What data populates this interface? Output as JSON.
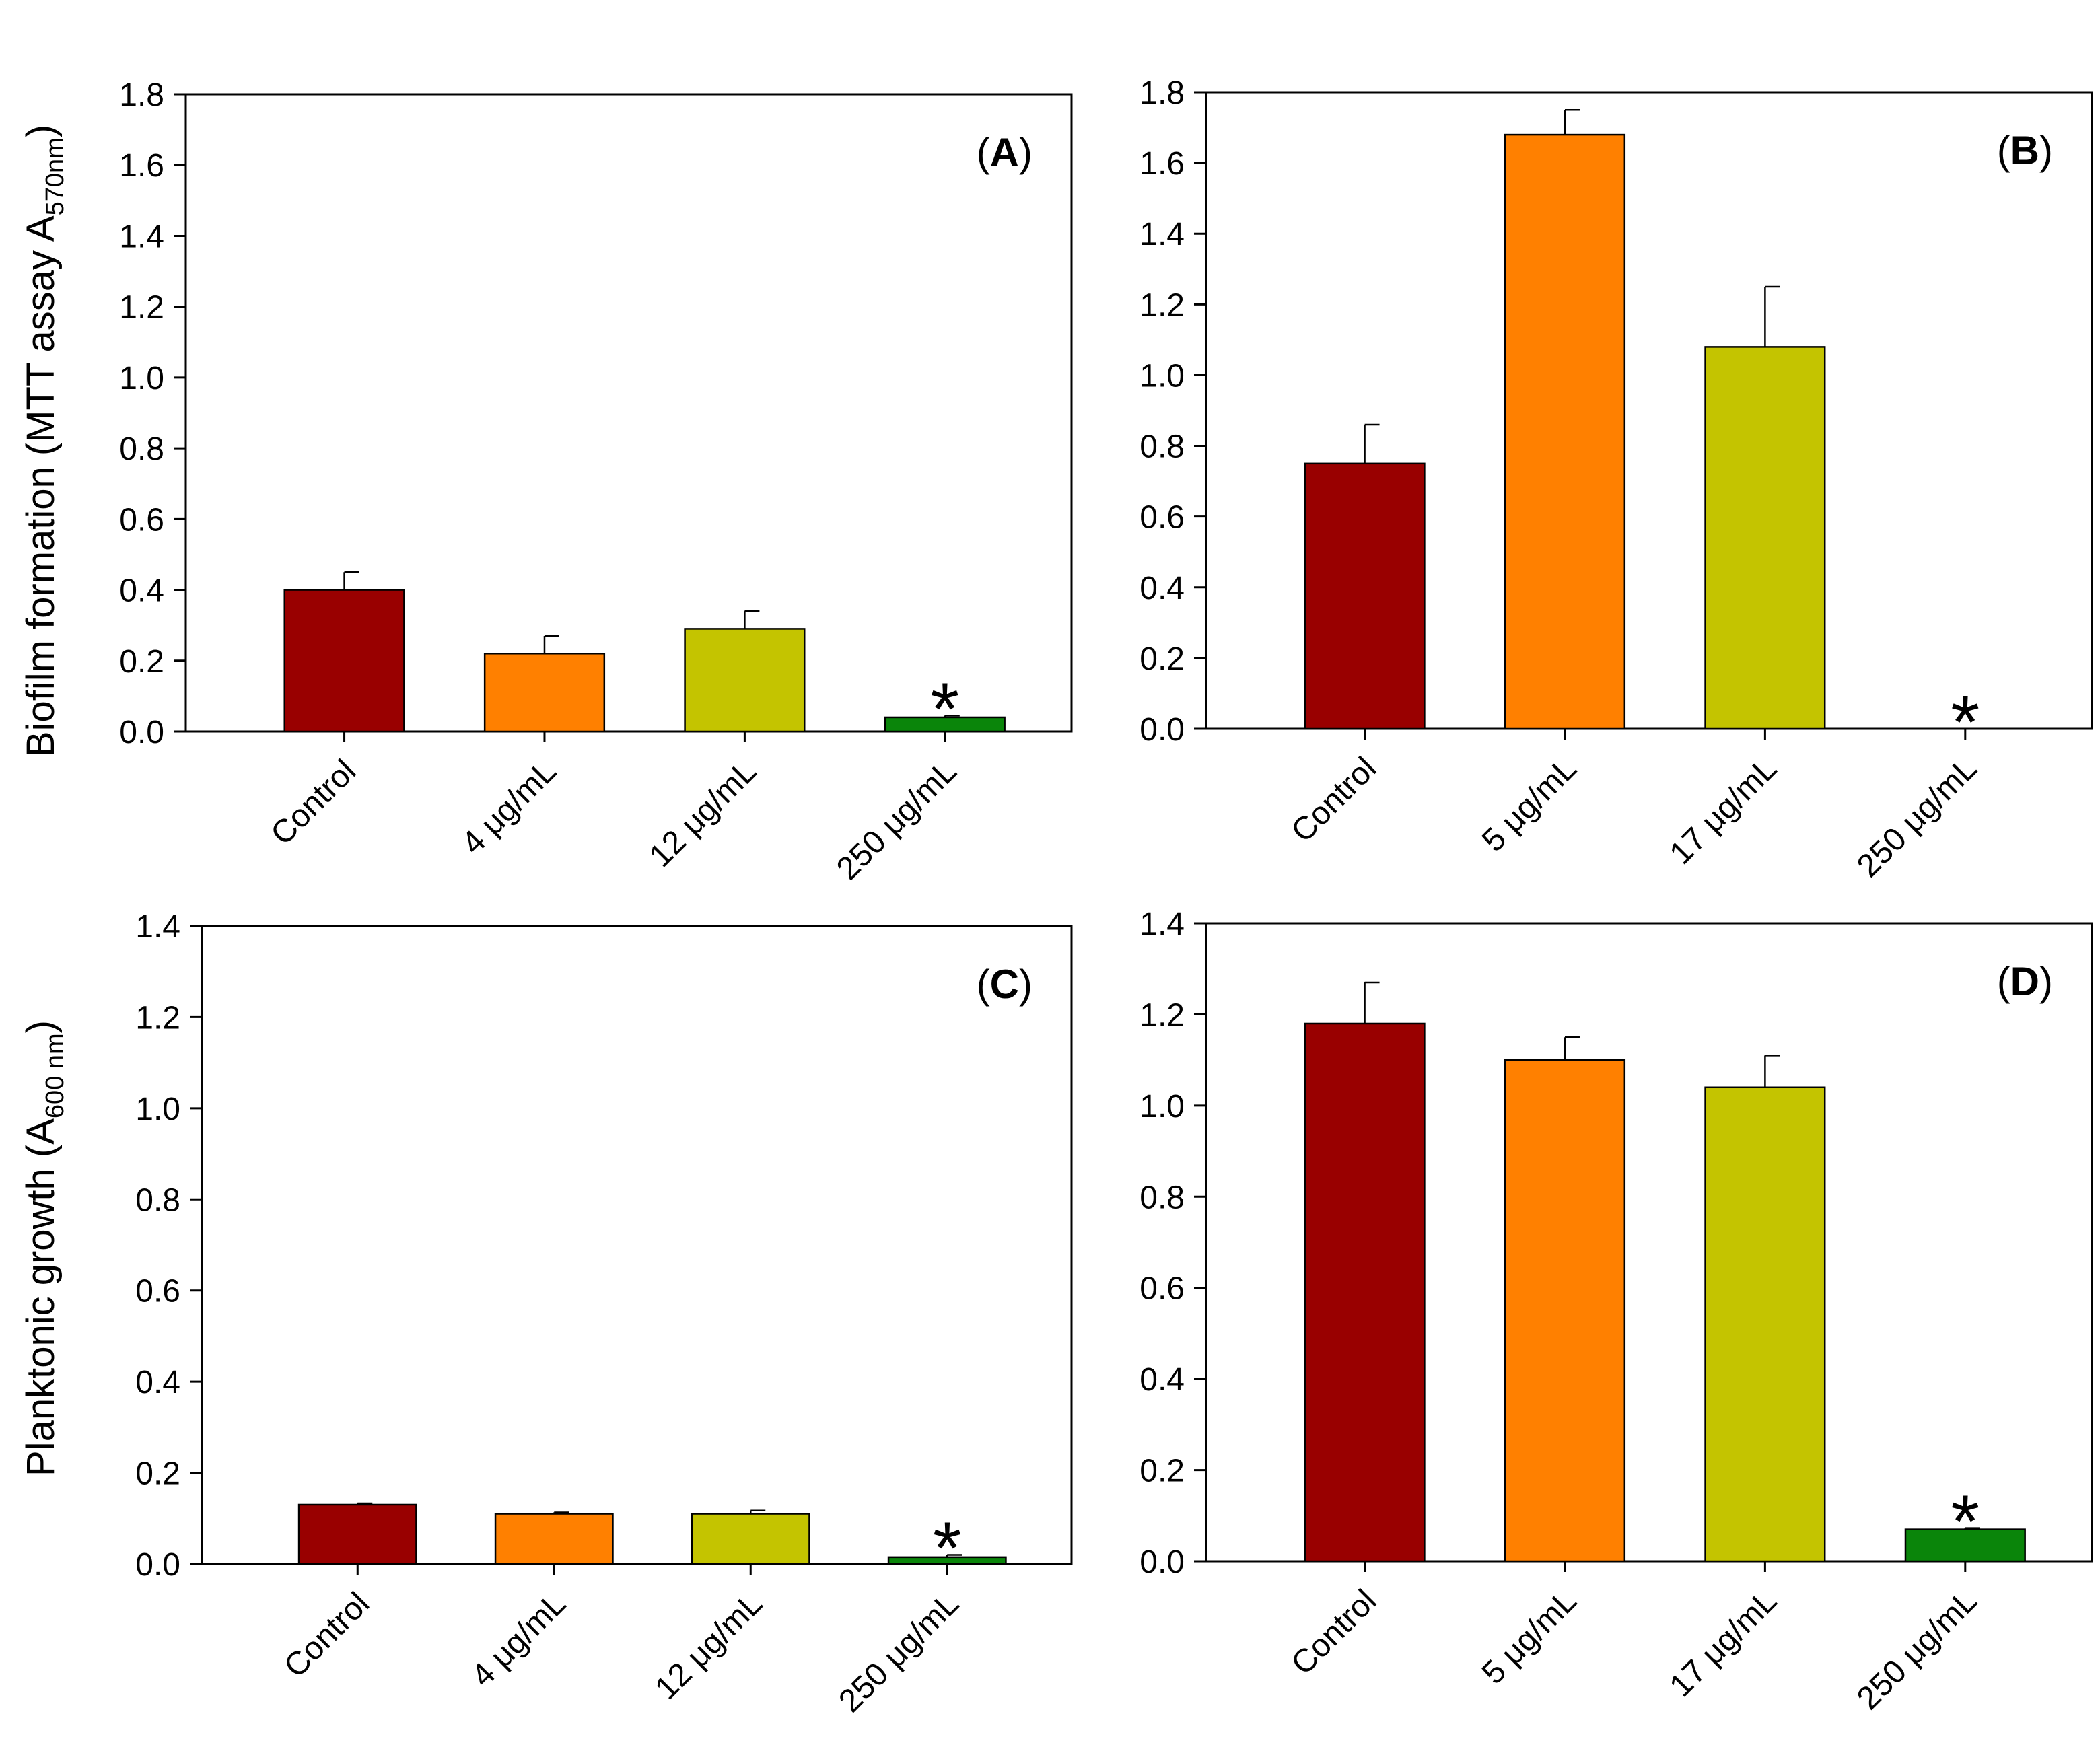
{
  "colors": {
    "control": "#990000",
    "low": "#ff8000",
    "mid": "#c4c400",
    "high": "#0a850a",
    "axis": "#000000"
  },
  "ylabel_top": {
    "main": "Biofilm formation (MTT assay A",
    "sub": "570nm",
    "close": ")"
  },
  "ylabel_bottom": {
    "main": "Planktonic growth (A",
    "sub": "600 nm",
    "close": ")"
  },
  "chart_data": [
    {
      "type": "bar",
      "panel": "A",
      "label_open": "(",
      "label_letter": "A",
      "label_close": ")",
      "categories": [
        "Control",
        "4 μg/mL",
        "12 μg/mL",
        "250 μg/mL"
      ],
      "values": [
        0.4,
        0.22,
        0.29,
        0.04
      ],
      "errors": [
        0.05,
        0.05,
        0.05,
        0.005
      ],
      "ylim": [
        0,
        1.8
      ],
      "yticks": [
        "0.0",
        "0.2",
        "0.4",
        "0.6",
        "0.8",
        "1.0",
        "1.2",
        "1.4",
        "1.6",
        "1.8"
      ],
      "significance": [
        "",
        "",
        "",
        "*"
      ]
    },
    {
      "type": "bar",
      "panel": "B",
      "label_open": "(",
      "label_letter": "B",
      "label_close": ")",
      "categories": [
        "Control",
        "5 μg/mL",
        "17 μg/mL",
        "250 μg/mL"
      ],
      "values": [
        0.75,
        1.68,
        1.08,
        0.0
      ],
      "errors": [
        0.11,
        0.07,
        0.17,
        0.0
      ],
      "ylim": [
        0,
        1.8
      ],
      "yticks": [
        "0.0",
        "0.2",
        "0.4",
        "0.6",
        "0.8",
        "1.0",
        "1.2",
        "1.4",
        "1.6",
        "1.8"
      ],
      "significance": [
        "",
        "",
        "",
        "*"
      ]
    },
    {
      "type": "bar",
      "panel": "C",
      "label_open": "(",
      "label_letter": "C",
      "label_close": ")",
      "categories": [
        "Control",
        "4 μg/mL",
        "12 μg/mL",
        "250 μg/mL"
      ],
      "values": [
        0.13,
        0.11,
        0.11,
        0.015
      ],
      "errors": [
        0.003,
        0.003,
        0.007,
        0.005
      ],
      "ylim": [
        0,
        1.4
      ],
      "yticks": [
        "0.0",
        "0.2",
        "0.4",
        "0.6",
        "0.8",
        "1.0",
        "1.2",
        "1.4"
      ],
      "significance": [
        "",
        "",
        "",
        "*"
      ]
    },
    {
      "type": "bar",
      "panel": "D",
      "label_open": "(",
      "label_letter": "D",
      "label_close": ")",
      "categories": [
        "Control",
        "5 μg/mL",
        "17 μg/mL",
        "250 μg/mL"
      ],
      "values": [
        1.18,
        1.1,
        1.04,
        0.07
      ],
      "errors": [
        0.09,
        0.05,
        0.07,
        0.003
      ],
      "ylim": [
        0,
        1.4
      ],
      "yticks": [
        "0.0",
        "0.2",
        "0.4",
        "0.6",
        "0.8",
        "1.0",
        "1.2",
        "1.4"
      ],
      "significance": [
        "",
        "",
        "",
        "*"
      ]
    }
  ]
}
